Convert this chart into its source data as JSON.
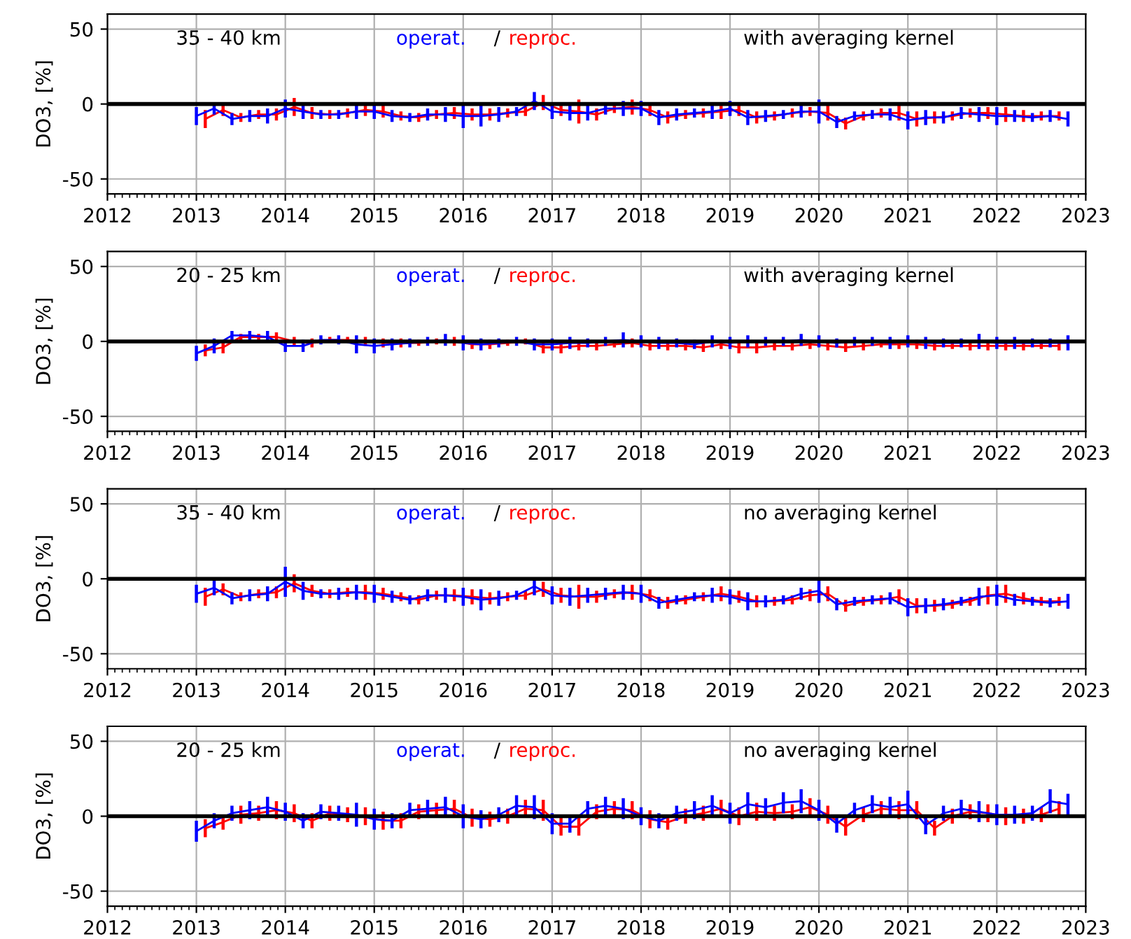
{
  "chart_data": [
    {
      "type": "line",
      "ylabel": "DO3, [%]",
      "annotations": [
        "35 - 40 km",
        "/",
        "with averaging kernel"
      ],
      "legend": "top",
      "grid": true,
      "xlim": [
        2012,
        2023
      ],
      "xticks": [
        2012,
        2013,
        2014,
        2015,
        2016,
        2017,
        2018,
        2019,
        2020,
        2021,
        2022,
        2023
      ],
      "ylim": [
        -60,
        60
      ],
      "yticks": [
        -50,
        0,
        50
      ],
      "ref_lines": [
        {
          "axis": "y",
          "value": 0,
          "color": "#000000"
        }
      ],
      "x": [
        2013.0,
        2013.2,
        2013.4,
        2013.6,
        2013.8,
        2014.0,
        2014.2,
        2014.4,
        2014.6,
        2014.8,
        2015.0,
        2015.2,
        2015.4,
        2015.6,
        2015.8,
        2016.0,
        2016.2,
        2016.4,
        2016.6,
        2016.8,
        2017.0,
        2017.2,
        2017.4,
        2017.6,
        2017.8,
        2018.0,
        2018.2,
        2018.4,
        2018.6,
        2018.8,
        2019.0,
        2019.2,
        2019.4,
        2019.6,
        2019.8,
        2020.0,
        2020.2,
        2020.4,
        2020.6,
        2020.8,
        2021.0,
        2021.2,
        2021.4,
        2021.6,
        2021.8,
        2022.0,
        2022.2,
        2022.4,
        2022.6,
        2022.8
      ],
      "series": [
        {
          "name": "operat.",
          "color": "#0000ff",
          "values": [
            -8,
            -3,
            -10,
            -8,
            -8,
            -3,
            -5,
            -7,
            -7,
            -5,
            -5,
            -8,
            -9,
            -7,
            -7,
            -8,
            -8,
            -7,
            -5,
            2,
            -5,
            -6,
            -6,
            -3,
            -3,
            -3,
            -9,
            -7,
            -6,
            -5,
            -3,
            -9,
            -8,
            -7,
            -5,
            -5,
            -12,
            -8,
            -7,
            -7,
            -11,
            -9,
            -9,
            -6,
            -7,
            -8,
            -8,
            -9,
            -8,
            -10
          ],
          "errors": [
            6,
            4,
            4,
            4,
            5,
            6,
            5,
            3,
            3,
            5,
            5,
            4,
            3,
            4,
            5,
            8,
            7,
            5,
            3,
            6,
            5,
            5,
            5,
            4,
            5,
            5,
            5,
            4,
            3,
            5,
            5,
            5,
            4,
            3,
            4,
            8,
            4,
            3,
            3,
            4,
            6,
            5,
            4,
            4,
            5,
            6,
            4,
            3,
            4,
            5
          ]
        },
        {
          "name": "reproc.",
          "color": "#ff0000",
          "x": [
            2013.1,
            2013.3,
            2013.5,
            2013.7,
            2013.9,
            2014.1,
            2014.3,
            2014.5,
            2014.7,
            2014.9,
            2015.1,
            2015.3,
            2015.5,
            2015.7,
            2015.9,
            2016.1,
            2016.3,
            2016.5,
            2016.7,
            2016.9,
            2017.1,
            2017.3,
            2017.5,
            2017.7,
            2017.9,
            2018.1,
            2018.3,
            2018.5,
            2018.7,
            2018.9,
            2019.1,
            2019.3,
            2019.5,
            2019.7,
            2019.9,
            2020.1,
            2020.3,
            2020.5,
            2020.7,
            2020.9,
            2021.1,
            2021.3,
            2021.5,
            2021.7,
            2021.9,
            2022.1,
            2022.3,
            2022.5,
            2022.7
          ],
          "values": [
            -10,
            -4,
            -9,
            -7,
            -7,
            -2,
            -6,
            -7,
            -6,
            -4,
            -5,
            -8,
            -9,
            -7,
            -6,
            -7,
            -7,
            -6,
            -5,
            1,
            -4,
            -5,
            -7,
            -3,
            -2,
            -4,
            -9,
            -7,
            -6,
            -5,
            -4,
            -9,
            -8,
            -6,
            -5,
            -6,
            -13,
            -8,
            -6,
            -6,
            -10,
            -9,
            -8,
            -6,
            -6,
            -7,
            -8,
            -8,
            -8
          ],
          "errors": [
            6,
            4,
            3,
            3,
            4,
            6,
            4,
            3,
            3,
            4,
            4,
            3,
            3,
            3,
            4,
            4,
            4,
            3,
            3,
            5,
            4,
            8,
            4,
            3,
            5,
            4,
            4,
            3,
            3,
            5,
            4,
            4,
            3,
            3,
            3,
            5,
            4,
            3,
            3,
            5,
            5,
            4,
            3,
            3,
            4,
            5,
            4,
            3,
            3
          ]
        }
      ]
    },
    {
      "type": "line",
      "ylabel": "DO3, [%]",
      "annotations": [
        "20 - 25 km",
        "/",
        "with averaging kernel"
      ],
      "legend": "top",
      "grid": true,
      "xlim": [
        2012,
        2023
      ],
      "xticks": [
        2012,
        2013,
        2014,
        2015,
        2016,
        2017,
        2018,
        2019,
        2020,
        2021,
        2022,
        2023
      ],
      "ylim": [
        -60,
        60
      ],
      "yticks": [
        -50,
        0,
        50
      ],
      "ref_lines": [
        {
          "axis": "y",
          "value": 0,
          "color": "#000000"
        }
      ],
      "x": [
        2013.0,
        2013.2,
        2013.4,
        2013.6,
        2013.8,
        2014.0,
        2014.2,
        2014.4,
        2014.6,
        2014.8,
        2015.0,
        2015.2,
        2015.4,
        2015.6,
        2015.8,
        2016.0,
        2016.2,
        2016.4,
        2016.6,
        2016.8,
        2017.0,
        2017.2,
        2017.4,
        2017.6,
        2017.8,
        2018.0,
        2018.2,
        2018.4,
        2018.6,
        2018.8,
        2019.0,
        2019.2,
        2019.4,
        2019.6,
        2019.8,
        2020.0,
        2020.2,
        2020.4,
        2020.6,
        2020.8,
        2021.0,
        2021.2,
        2021.4,
        2021.6,
        2021.8,
        2022.0,
        2022.2,
        2022.4,
        2022.6,
        2022.8
      ],
      "series": [
        {
          "name": "operat.",
          "color": "#0000ff",
          "values": [
            -8,
            -3,
            4,
            4,
            3,
            -3,
            -3,
            1,
            1,
            -2,
            -3,
            -2,
            -1,
            0,
            1,
            -1,
            -2,
            -1,
            0,
            -2,
            -2,
            -1,
            -1,
            0,
            1,
            0,
            -1,
            -1,
            -2,
            0,
            -1,
            0,
            0,
            0,
            1,
            0,
            -1,
            0,
            0,
            -1,
            0,
            -1,
            -1,
            -1,
            0,
            -1,
            -1,
            -1,
            -1,
            -1
          ],
          "errors": [
            5,
            5,
            3,
            3,
            4,
            4,
            4,
            3,
            3,
            6,
            5,
            4,
            3,
            3,
            4,
            5,
            4,
            3,
            3,
            4,
            4,
            4,
            3,
            3,
            5,
            4,
            4,
            3,
            3,
            4,
            4,
            4,
            3,
            3,
            4,
            4,
            3,
            3,
            3,
            4,
            4,
            4,
            3,
            3,
            5,
            4,
            4,
            3,
            3,
            5
          ]
        },
        {
          "name": "reproc.",
          "color": "#ff0000",
          "x": [
            2013.1,
            2013.3,
            2013.5,
            2013.7,
            2013.9,
            2014.1,
            2014.3,
            2014.5,
            2014.7,
            2014.9,
            2015.1,
            2015.3,
            2015.5,
            2015.7,
            2015.9,
            2016.1,
            2016.3,
            2016.5,
            2016.7,
            2016.9,
            2017.1,
            2017.3,
            2017.5,
            2017.7,
            2017.9,
            2018.1,
            2018.3,
            2018.5,
            2018.7,
            2018.9,
            2019.1,
            2019.3,
            2019.5,
            2019.7,
            2019.9,
            2020.1,
            2020.3,
            2020.5,
            2020.7,
            2020.9,
            2021.1,
            2021.3,
            2021.5,
            2021.7,
            2021.9,
            2022.1,
            2022.3,
            2022.5,
            2022.7
          ],
          "values": [
            -6,
            -4,
            3,
            3,
            3,
            0,
            -1,
            1,
            1,
            0,
            -1,
            -1,
            -1,
            0,
            0,
            -2,
            -2,
            -1,
            0,
            -4,
            -4,
            -3,
            -3,
            -2,
            -1,
            -3,
            -3,
            -3,
            -4,
            -2,
            -4,
            -4,
            -3,
            -3,
            -2,
            -3,
            -4,
            -3,
            -2,
            -2,
            -2,
            -3,
            -3,
            -3,
            -3,
            -3,
            -3,
            -3,
            -3
          ],
          "errors": [
            4,
            4,
            2,
            2,
            3,
            3,
            3,
            2,
            2,
            3,
            3,
            3,
            2,
            2,
            3,
            3,
            3,
            2,
            2,
            4,
            4,
            3,
            3,
            2,
            3,
            3,
            3,
            3,
            3,
            3,
            4,
            4,
            3,
            3,
            3,
            3,
            3,
            3,
            2,
            3,
            3,
            3,
            2,
            3,
            3,
            3,
            3,
            2,
            3
          ]
        }
      ]
    },
    {
      "type": "line",
      "ylabel": "DO3, [%]",
      "annotations": [
        "35 - 40 km",
        "/",
        "no averaging kernel"
      ],
      "legend": "top",
      "grid": true,
      "xlim": [
        2012,
        2023
      ],
      "xticks": [
        2012,
        2013,
        2014,
        2015,
        2016,
        2017,
        2018,
        2019,
        2020,
        2021,
        2022,
        2023
      ],
      "ylim": [
        -60,
        60
      ],
      "yticks": [
        -50,
        0,
        50
      ],
      "ref_lines": [
        {
          "axis": "y",
          "value": 0,
          "color": "#000000"
        }
      ],
      "x": [
        2013.0,
        2013.2,
        2013.4,
        2013.6,
        2013.8,
        2014.0,
        2014.2,
        2014.4,
        2014.6,
        2014.8,
        2015.0,
        2015.2,
        2015.4,
        2015.6,
        2015.8,
        2016.0,
        2016.2,
        2016.4,
        2016.6,
        2016.8,
        2017.0,
        2017.2,
        2017.4,
        2017.6,
        2017.8,
        2018.0,
        2018.2,
        2018.4,
        2018.6,
        2018.8,
        2019.0,
        2019.2,
        2019.4,
        2019.6,
        2019.8,
        2020.0,
        2020.2,
        2020.4,
        2020.6,
        2020.8,
        2021.0,
        2021.2,
        2021.4,
        2021.6,
        2021.8,
        2022.0,
        2022.2,
        2022.4,
        2022.6,
        2022.8
      ],
      "series": [
        {
          "name": "operat.",
          "color": "#0000ff",
          "values": [
            -10,
            -6,
            -13,
            -11,
            -10,
            -2,
            -8,
            -10,
            -10,
            -9,
            -10,
            -12,
            -14,
            -11,
            -11,
            -12,
            -14,
            -13,
            -11,
            -5,
            -11,
            -12,
            -11,
            -10,
            -9,
            -10,
            -16,
            -14,
            -12,
            -11,
            -12,
            -15,
            -15,
            -14,
            -10,
            -8,
            -17,
            -15,
            -14,
            -13,
            -19,
            -18,
            -17,
            -15,
            -12,
            -11,
            -14,
            -15,
            -16,
            -15
          ],
          "errors": [
            6,
            5,
            4,
            4,
            5,
            10,
            6,
            3,
            4,
            5,
            6,
            4,
            3,
            4,
            5,
            6,
            7,
            5,
            3,
            6,
            6,
            6,
            5,
            4,
            5,
            6,
            4,
            3,
            3,
            5,
            5,
            6,
            4,
            3,
            4,
            8,
            4,
            3,
            3,
            4,
            6,
            5,
            4,
            3,
            6,
            7,
            4,
            3,
            3,
            5
          ]
        },
        {
          "name": "reproc.",
          "color": "#ff0000",
          "x": [
            2013.1,
            2013.3,
            2013.5,
            2013.7,
            2013.9,
            2014.1,
            2014.3,
            2014.5,
            2014.7,
            2014.9,
            2015.1,
            2015.3,
            2015.5,
            2015.7,
            2015.9,
            2016.1,
            2016.3,
            2016.5,
            2016.7,
            2016.9,
            2017.1,
            2017.3,
            2017.5,
            2017.7,
            2017.9,
            2018.1,
            2018.3,
            2018.5,
            2018.7,
            2018.9,
            2019.1,
            2019.3,
            2019.5,
            2019.7,
            2019.9,
            2020.1,
            2020.3,
            2020.5,
            2020.7,
            2020.9,
            2021.1,
            2021.3,
            2021.5,
            2021.7,
            2021.9,
            2022.1,
            2022.3,
            2022.5,
            2022.7
          ],
          "values": [
            -12,
            -7,
            -12,
            -10,
            -9,
            -3,
            -8,
            -10,
            -9,
            -9,
            -10,
            -12,
            -14,
            -11,
            -11,
            -12,
            -13,
            -12,
            -11,
            -7,
            -11,
            -12,
            -12,
            -10,
            -9,
            -11,
            -16,
            -14,
            -12,
            -10,
            -12,
            -15,
            -15,
            -14,
            -11,
            -10,
            -18,
            -15,
            -14,
            -12,
            -18,
            -18,
            -17,
            -15,
            -11,
            -10,
            -13,
            -15,
            -15
          ],
          "errors": [
            6,
            4,
            3,
            3,
            4,
            6,
            4,
            3,
            3,
            5,
            4,
            3,
            3,
            3,
            4,
            5,
            4,
            3,
            3,
            5,
            5,
            8,
            4,
            3,
            5,
            4,
            4,
            3,
            3,
            5,
            4,
            4,
            3,
            3,
            4,
            5,
            4,
            3,
            3,
            5,
            5,
            4,
            3,
            3,
            6,
            6,
            4,
            3,
            3
          ]
        }
      ]
    },
    {
      "type": "line",
      "ylabel": "DO3, [%]",
      "annotations": [
        "20 - 25 km",
        "/",
        "no averaging kernel"
      ],
      "legend": "top",
      "grid": true,
      "xlim": [
        2012,
        2023
      ],
      "xticks": [
        2012,
        2013,
        2014,
        2015,
        2016,
        2017,
        2018,
        2019,
        2020,
        2021,
        2022,
        2023
      ],
      "ylim": [
        -60,
        60
      ],
      "yticks": [
        -50,
        0,
        50
      ],
      "ref_lines": [
        {
          "axis": "y",
          "value": 0,
          "color": "#000000"
        }
      ],
      "x": [
        2013.0,
        2013.2,
        2013.4,
        2013.6,
        2013.8,
        2014.0,
        2014.2,
        2014.4,
        2014.6,
        2014.8,
        2015.0,
        2015.2,
        2015.4,
        2015.6,
        2015.8,
        2016.0,
        2016.2,
        2016.4,
        2016.6,
        2016.8,
        2017.0,
        2017.2,
        2017.4,
        2017.6,
        2017.8,
        2018.0,
        2018.2,
        2018.4,
        2018.6,
        2018.8,
        2019.0,
        2019.2,
        2019.4,
        2019.6,
        2019.8,
        2020.0,
        2020.2,
        2020.4,
        2020.6,
        2020.8,
        2021.0,
        2021.2,
        2021.4,
        2021.6,
        2021.8,
        2022.0,
        2022.2,
        2022.4,
        2022.6,
        2022.8
      ],
      "series": [
        {
          "name": "operat.",
          "color": "#0000ff",
          "values": [
            -10,
            -3,
            2,
            4,
            6,
            3,
            -3,
            3,
            2,
            1,
            -2,
            -3,
            4,
            5,
            6,
            0,
            -2,
            1,
            7,
            6,
            -5,
            -5,
            5,
            7,
            5,
            0,
            -3,
            2,
            4,
            7,
            2,
            8,
            6,
            9,
            10,
            4,
            -5,
            4,
            8,
            6,
            8,
            -6,
            2,
            5,
            3,
            1,
            1,
            2,
            10,
            8
          ],
          "errors": [
            7,
            5,
            5,
            6,
            7,
            6,
            5,
            5,
            5,
            8,
            7,
            5,
            5,
            6,
            7,
            8,
            6,
            5,
            7,
            8,
            7,
            6,
            5,
            6,
            7,
            6,
            5,
            5,
            6,
            7,
            7,
            8,
            6,
            7,
            8,
            7,
            6,
            5,
            6,
            7,
            9,
            6,
            5,
            6,
            7,
            7,
            6,
            5,
            8,
            7
          ]
        },
        {
          "name": "reproc.",
          "color": "#ff0000",
          "x": [
            2013.1,
            2013.3,
            2013.5,
            2013.7,
            2013.9,
            2014.1,
            2014.3,
            2014.5,
            2014.7,
            2014.9,
            2015.1,
            2015.3,
            2015.5,
            2015.7,
            2015.9,
            2016.1,
            2016.3,
            2016.5,
            2016.7,
            2016.9,
            2017.1,
            2017.3,
            2017.5,
            2017.7,
            2017.9,
            2018.1,
            2018.3,
            2018.5,
            2018.7,
            2018.9,
            2019.1,
            2019.3,
            2019.5,
            2019.7,
            2019.9,
            2020.1,
            2020.3,
            2020.5,
            2020.7,
            2020.9,
            2021.1,
            2021.3,
            2021.5,
            2021.7,
            2021.9,
            2022.1,
            2022.3,
            2022.5,
            2022.7
          ],
          "values": [
            -8,
            -4,
            1,
            2,
            4,
            2,
            -3,
            2,
            1,
            0,
            -3,
            -3,
            3,
            4,
            5,
            -1,
            -2,
            0,
            5,
            4,
            -7,
            -7,
            3,
            5,
            4,
            -2,
            -4,
            0,
            2,
            5,
            0,
            3,
            2,
            3,
            6,
            1,
            -7,
            1,
            5,
            4,
            4,
            -8,
            0,
            3,
            2,
            0,
            0,
            1,
            5
          ],
          "errors": [
            6,
            5,
            6,
            5,
            6,
            6,
            5,
            5,
            5,
            6,
            6,
            5,
            5,
            5,
            6,
            6,
            5,
            5,
            6,
            7,
            6,
            6,
            5,
            5,
            6,
            6,
            5,
            5,
            5,
            6,
            6,
            6,
            5,
            5,
            6,
            6,
            6,
            5,
            5,
            6,
            6,
            5,
            5,
            5,
            6,
            6,
            5,
            5,
            5
          ]
        }
      ]
    }
  ]
}
